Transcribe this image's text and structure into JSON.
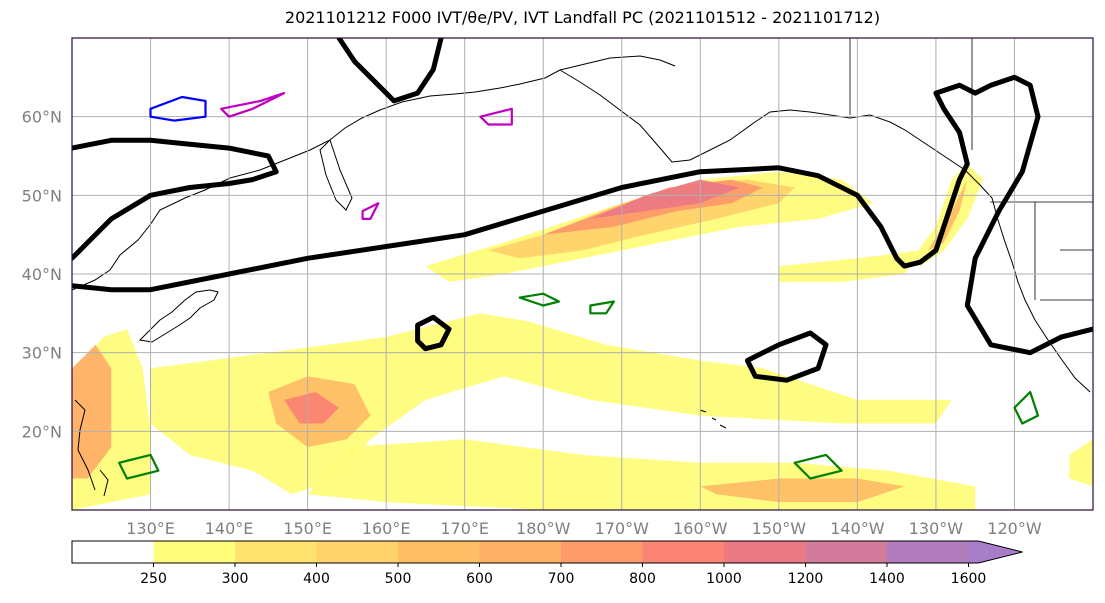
{
  "title": "2021101212 F000 IVT/θe/PV, IVT Landfall PC (2021101512 - 2021101712)",
  "map": {
    "projection": "PlateCarree",
    "lon_range": [
      120,
      250
    ],
    "lat_range": [
      10,
      70
    ],
    "lat_labels": [
      {
        "lat": 60,
        "text": "60°N"
      },
      {
        "lat": 50,
        "text": "50°N"
      },
      {
        "lat": 40,
        "text": "40°N"
      },
      {
        "lat": 30,
        "text": "30°N"
      },
      {
        "lat": 20,
        "text": "20°N"
      }
    ],
    "lon_labels": [
      {
        "lon": 130,
        "text": "130°E"
      },
      {
        "lon": 140,
        "text": "140°E"
      },
      {
        "lon": 150,
        "text": "150°E"
      },
      {
        "lon": 160,
        "text": "160°E"
      },
      {
        "lon": 170,
        "text": "170°E"
      },
      {
        "lon": 180,
        "text": "180°W"
      },
      {
        "lon": 190,
        "text": "170°W"
      },
      {
        "lon": 200,
        "text": "160°W"
      },
      {
        "lon": 210,
        "text": "150°W"
      },
      {
        "lon": 220,
        "text": "140°W"
      },
      {
        "lon": 230,
        "text": "130°W"
      },
      {
        "lon": 240,
        "text": "120°W"
      }
    ],
    "grid_lons": [
      130,
      140,
      150,
      160,
      170,
      180,
      190,
      200,
      210,
      220,
      230,
      240
    ],
    "grid_lats": [
      20,
      30,
      40,
      50,
      60
    ],
    "colors": {
      "grid": "#b0b0b0",
      "coast": "#000000",
      "theta_e_contour": "#000000",
      "pv_contour": "#008000",
      "pv_negative": "#c000c0",
      "pv_low": "#0000ff",
      "frame": "#2a0a3a"
    }
  },
  "colorbar": {
    "levels": [
      "250",
      "300",
      "400",
      "500",
      "600",
      "700",
      "800",
      "1000",
      "1200",
      "1400",
      "1600"
    ],
    "colors": [
      "#ffffff",
      "#fffd7a",
      "#ffe36e",
      "#ffd26a",
      "#ffbe66",
      "#ffb067",
      "#ff9a6a",
      "#fb8474",
      "#ec7a84",
      "#d47a9a",
      "#b07cbc",
      "#a77cc8"
    ],
    "extend": "max"
  },
  "chart_data": {
    "type": "heatmap",
    "field": "IVT",
    "bins": [
      250,
      300,
      400,
      500,
      600,
      700,
      800,
      1000,
      1200,
      1400,
      1600
    ],
    "ivt_regions": [
      {
        "level": 250,
        "points": [
          [
            165,
            41
          ],
          [
            175,
            44
          ],
          [
            190,
            49
          ],
          [
            200,
            52
          ],
          [
            210,
            53
          ],
          [
            218,
            52
          ],
          [
            222,
            49
          ],
          [
            215,
            47
          ],
          [
            205,
            46
          ],
          [
            195,
            44
          ],
          [
            185,
            42
          ],
          [
            175,
            40
          ],
          [
            168,
            39
          ]
        ]
      },
      {
        "level": 400,
        "points": [
          [
            173,
            43
          ],
          [
            180,
            45
          ],
          [
            190,
            49
          ],
          [
            198,
            51
          ],
          [
            206,
            52
          ],
          [
            212,
            51
          ],
          [
            210,
            49
          ],
          [
            202,
            47
          ],
          [
            193,
            45
          ],
          [
            185,
            43
          ],
          [
            177,
            42
          ]
        ]
      },
      {
        "level": 700,
        "points": [
          [
            180,
            45
          ],
          [
            188,
            48
          ],
          [
            196,
            51
          ],
          [
            204,
            52
          ],
          [
            208,
            51
          ],
          [
            204,
            49
          ],
          [
            197,
            48
          ],
          [
            189,
            46
          ]
        ]
      },
      {
        "level": 1000,
        "points": [
          [
            186,
            47
          ],
          [
            193,
            50
          ],
          [
            200,
            52
          ],
          [
            205,
            51
          ],
          [
            200,
            49
          ],
          [
            193,
            48
          ]
        ]
      },
      {
        "level": 250,
        "points": [
          [
            227,
            42
          ],
          [
            230,
            46
          ],
          [
            232,
            52
          ],
          [
            234,
            54
          ],
          [
            236,
            52
          ],
          [
            234,
            47
          ],
          [
            231,
            43
          ],
          [
            228,
            41
          ]
        ]
      },
      {
        "level": 500,
        "points": [
          [
            229,
            43
          ],
          [
            232,
            48
          ],
          [
            234,
            52
          ],
          [
            233,
            48
          ],
          [
            231,
            44
          ]
        ]
      },
      {
        "level": 250,
        "points": [
          [
            210,
            41
          ],
          [
            220,
            42
          ],
          [
            228,
            43
          ],
          [
            226,
            40
          ],
          [
            218,
            39
          ],
          [
            210,
            39
          ]
        ]
      },
      {
        "level": 250,
        "points": [
          [
            120,
            27
          ],
          [
            124,
            32
          ],
          [
            127,
            33
          ],
          [
            129,
            28
          ],
          [
            130,
            20
          ],
          [
            130,
            12
          ],
          [
            120,
            10
          ]
        ]
      },
      {
        "level": 600,
        "points": [
          [
            120,
            28
          ],
          [
            123,
            31
          ],
          [
            125,
            28
          ],
          [
            125,
            18
          ],
          [
            122,
            14
          ],
          [
            120,
            14
          ]
        ]
      },
      {
        "level": 250,
        "points": [
          [
            130,
            28
          ],
          [
            145,
            30
          ],
          [
            160,
            32
          ],
          [
            172,
            35
          ],
          [
            178,
            34
          ],
          [
            188,
            31
          ],
          [
            200,
            29
          ],
          [
            208,
            28
          ],
          [
            220,
            24
          ],
          [
            232,
            24
          ],
          [
            230,
            21
          ],
          [
            218,
            21
          ],
          [
            200,
            22
          ],
          [
            186,
            24
          ],
          [
            175,
            27
          ],
          [
            165,
            24
          ],
          [
            158,
            19
          ],
          [
            154,
            14
          ],
          [
            148,
            12
          ],
          [
            143,
            15
          ],
          [
            135,
            17
          ],
          [
            130,
            21
          ]
        ]
      },
      {
        "level": 500,
        "points": [
          [
            145,
            25
          ],
          [
            150,
            27
          ],
          [
            156,
            26
          ],
          [
            158,
            22
          ],
          [
            155,
            19
          ],
          [
            150,
            18
          ],
          [
            146,
            21
          ]
        ]
      },
      {
        "level": 800,
        "points": [
          [
            147,
            24
          ],
          [
            151,
            25
          ],
          [
            154,
            23
          ],
          [
            152,
            21
          ],
          [
            149,
            21
          ]
        ]
      },
      {
        "level": 250,
        "points": [
          [
            155,
            18
          ],
          [
            170,
            19
          ],
          [
            185,
            17
          ],
          [
            200,
            16
          ],
          [
            212,
            16
          ],
          [
            224,
            15
          ],
          [
            235,
            13
          ],
          [
            235,
            10
          ],
          [
            210,
            10
          ],
          [
            180,
            10
          ],
          [
            160,
            11
          ],
          [
            150,
            12
          ]
        ]
      },
      {
        "level": 500,
        "points": [
          [
            200,
            13
          ],
          [
            210,
            14
          ],
          [
            220,
            14
          ],
          [
            226,
            13
          ],
          [
            220,
            11
          ],
          [
            210,
            11
          ],
          [
            202,
            12
          ]
        ]
      },
      {
        "level": 250,
        "points": [
          [
            247,
            17
          ],
          [
            250,
            19
          ],
          [
            250,
            13
          ],
          [
            247,
            14
          ]
        ]
      }
    ],
    "theta_e_contours": [
      {
        "closed": false,
        "points": [
          [
            120,
            38.5
          ],
          [
            125,
            38
          ],
          [
            130,
            38
          ],
          [
            140,
            40
          ],
          [
            150,
            42
          ],
          [
            160,
            43.5
          ],
          [
            170,
            45
          ],
          [
            180,
            48
          ],
          [
            190,
            51
          ],
          [
            200,
            53
          ],
          [
            210,
            53.5
          ],
          [
            215,
            52.5
          ],
          [
            220,
            50
          ],
          [
            223,
            46
          ],
          [
            225,
            42
          ],
          [
            226,
            41
          ],
          [
            228,
            41.5
          ],
          [
            230,
            43
          ],
          [
            232,
            49
          ],
          [
            233,
            52
          ],
          [
            234,
            54
          ],
          [
            233,
            58
          ],
          [
            231,
            61
          ],
          [
            230,
            63
          ],
          [
            233,
            64
          ],
          [
            235,
            63
          ],
          [
            237,
            64
          ],
          [
            240,
            65
          ],
          [
            242,
            64
          ],
          [
            243,
            60
          ],
          [
            241,
            53
          ],
          [
            238,
            48
          ],
          [
            235,
            42
          ],
          [
            234,
            36
          ],
          [
            237,
            31
          ],
          [
            242,
            30
          ],
          [
            246,
            32
          ],
          [
            250,
            33
          ]
        ]
      },
      {
        "closed": false,
        "points": [
          [
            120,
            56
          ],
          [
            125,
            57
          ],
          [
            130,
            57
          ],
          [
            135,
            56.5
          ],
          [
            140,
            56
          ],
          [
            145,
            55
          ],
          [
            146,
            53
          ],
          [
            143,
            52
          ],
          [
            140,
            51.5
          ],
          [
            135,
            51
          ],
          [
            130,
            50
          ],
          [
            125,
            47
          ],
          [
            122,
            44
          ],
          [
            120,
            42
          ]
        ]
      },
      {
        "closed": true,
        "points": [
          [
            167,
            31
          ],
          [
            168,
            33
          ],
          [
            166,
            34.5
          ],
          [
            164,
            33.5
          ],
          [
            164,
            31.5
          ],
          [
            165,
            30.5
          ]
        ]
      },
      {
        "closed": true,
        "points": [
          [
            206,
            29
          ],
          [
            210,
            31
          ],
          [
            214,
            32.5
          ],
          [
            216,
            31
          ],
          [
            215,
            28
          ],
          [
            211,
            26.5
          ],
          [
            207,
            27
          ]
        ]
      },
      {
        "closed": false,
        "points": [
          [
            154,
            70
          ],
          [
            156,
            67
          ],
          [
            159,
            64
          ],
          [
            161,
            62
          ],
          [
            164,
            63
          ],
          [
            166,
            66
          ],
          [
            167,
            70
          ]
        ]
      }
    ],
    "pv_contours": [
      {
        "sign": "positive",
        "points": [
          [
            177,
            37
          ],
          [
            180,
            36
          ],
          [
            182,
            36.5
          ],
          [
            180,
            37.5
          ]
        ]
      },
      {
        "sign": "positive",
        "points": [
          [
            186,
            36
          ],
          [
            189,
            36.5
          ],
          [
            188,
            35
          ],
          [
            186,
            35
          ]
        ]
      },
      {
        "sign": "positive",
        "points": [
          [
            212,
            16
          ],
          [
            216,
            17
          ],
          [
            218,
            15
          ],
          [
            214,
            14
          ]
        ]
      },
      {
        "sign": "positive",
        "points": [
          [
            126,
            16
          ],
          [
            130,
            17
          ],
          [
            131,
            15
          ],
          [
            127,
            14
          ]
        ]
      },
      {
        "sign": "positive",
        "points": [
          [
            240,
            23
          ],
          [
            242,
            25
          ],
          [
            243,
            22
          ],
          [
            241,
            21
          ]
        ]
      },
      {
        "sign": "negative",
        "points": [
          [
            139,
            61
          ],
          [
            144,
            62
          ],
          [
            147,
            63
          ],
          [
            143,
            61
          ],
          [
            140,
            60
          ]
        ]
      },
      {
        "sign": "negative",
        "points": [
          [
            172,
            60
          ],
          [
            176,
            61
          ],
          [
            176,
            59
          ],
          [
            173,
            59
          ]
        ]
      },
      {
        "sign": "negative",
        "points": [
          [
            157,
            48
          ],
          [
            159,
            49
          ],
          [
            158,
            47
          ],
          [
            157,
            47
          ]
        ]
      },
      {
        "sign": "low",
        "points": [
          [
            130,
            61
          ],
          [
            134,
            62.5
          ],
          [
            137,
            62
          ],
          [
            137,
            60
          ],
          [
            133,
            59.5
          ],
          [
            130,
            60
          ]
        ]
      }
    ]
  }
}
